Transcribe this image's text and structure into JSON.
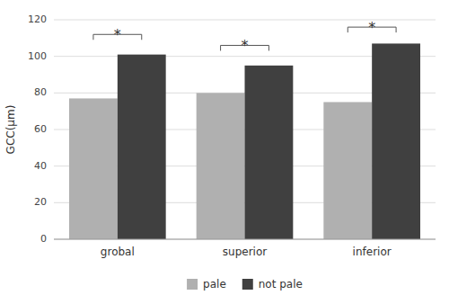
{
  "chart_data": {
    "type": "bar",
    "categories": [
      "grobal",
      "superior",
      "inferior"
    ],
    "series": [
      {
        "name": "pale",
        "color": "#b0b0b0",
        "values": [
          77,
          80,
          75
        ]
      },
      {
        "name": "not pale",
        "color": "#404040",
        "values": [
          101,
          95,
          107
        ]
      }
    ],
    "y_label": "GCC(μm)",
    "ylim": [
      0,
      120
    ],
    "yticks": [
      0,
      20,
      40,
      60,
      80,
      100,
      120
    ],
    "grid": true,
    "legend": "bottom",
    "annotations": [
      {
        "text": "*",
        "category": "grobal",
        "y": 112,
        "text_y": 113.5
      },
      {
        "text": "*",
        "category": "superior",
        "y": 106,
        "text_y": 107.5
      },
      {
        "text": "*",
        "category": "inferior",
        "y": 116,
        "text_y": 117.5
      }
    ]
  }
}
